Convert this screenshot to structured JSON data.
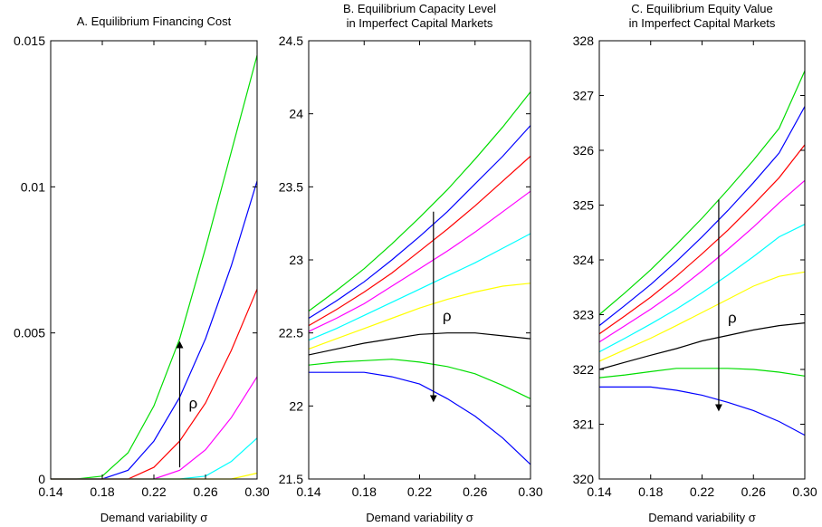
{
  "colors": {
    "series": [
      "#00dd00",
      "#0000ff",
      "#ff0000",
      "#ff00ff",
      "#00ffff",
      "#ffff00",
      "#000000"
    ],
    "frame": "#000000",
    "background": "#ffffff"
  },
  "chart_data": [
    {
      "type": "line",
      "title_lines": [
        "A. Equilibrium Financing Cost"
      ],
      "xlabel": "Demand variability σ",
      "ylabel": "",
      "xlim": [
        0.14,
        0.3
      ],
      "ylim": [
        0,
        0.015
      ],
      "xticks": [
        0.14,
        0.18,
        0.22,
        0.26,
        0.3
      ],
      "xtick_labels": [
        "0.14",
        "0.18",
        "0.22",
        "0.26",
        "0.30"
      ],
      "yticks": [
        0,
        0.005,
        0.01,
        0.015
      ],
      "ytick_labels": [
        "0",
        "0.005",
        "0.01",
        "0.015"
      ],
      "grid": false,
      "x": [
        0.14,
        0.16,
        0.18,
        0.2,
        0.22,
        0.24,
        0.26,
        0.28,
        0.3
      ],
      "series": [
        {
          "values": [
            0,
            0,
            0.0001,
            0.0009,
            0.0025,
            0.0048,
            0.0079,
            0.0112,
            0.0145
          ]
        },
        {
          "values": [
            0,
            0,
            0,
            0.0003,
            0.0013,
            0.0028,
            0.0048,
            0.0073,
            0.0102
          ]
        },
        {
          "values": [
            0,
            0,
            0,
            0,
            0.0004,
            0.0013,
            0.0026,
            0.0044,
            0.0065
          ]
        },
        {
          "values": [
            0,
            0,
            0,
            0,
            0,
            0.0003,
            0.001,
            0.0021,
            0.0035
          ]
        },
        {
          "values": [
            0,
            0,
            0,
            0,
            0,
            0,
            0.0001,
            0.0006,
            0.0014
          ]
        },
        {
          "values": [
            0,
            0,
            0,
            0,
            0,
            0,
            0,
            0,
            0.0002
          ]
        }
      ],
      "annotation": {
        "text": "ρ",
        "direction": "up",
        "arrow_x": 0.24,
        "arrow_from": 0.0004,
        "arrow_to": 0.0046,
        "label_y": 0.0026
      }
    },
    {
      "type": "line",
      "title_lines": [
        "B. Equilibrium Capacity Level",
        "in Imperfect Capital Markets"
      ],
      "xlabel": "Demand variability σ",
      "ylabel": "",
      "xlim": [
        0.14,
        0.3
      ],
      "ylim": [
        21.5,
        24.5
      ],
      "xticks": [
        0.14,
        0.18,
        0.22,
        0.26,
        0.3
      ],
      "xtick_labels": [
        "0.14",
        "0.18",
        "0.22",
        "0.26",
        "0.30"
      ],
      "yticks": [
        21.5,
        22,
        22.5,
        23,
        23.5,
        24,
        24.5
      ],
      "ytick_labels": [
        "21.5",
        "22",
        "22.5",
        "23",
        "23.5",
        "24",
        "24.5"
      ],
      "grid": false,
      "x": [
        0.14,
        0.16,
        0.18,
        0.2,
        0.22,
        0.24,
        0.26,
        0.28,
        0.3
      ],
      "series": [
        {
          "values": [
            22.65,
            22.79,
            22.94,
            23.11,
            23.29,
            23.48,
            23.69,
            23.91,
            24.15
          ]
        },
        {
          "values": [
            22.6,
            22.72,
            22.85,
            23.0,
            23.16,
            23.33,
            23.52,
            23.71,
            23.92
          ]
        },
        {
          "values": [
            22.55,
            22.66,
            22.78,
            22.91,
            23.06,
            23.21,
            23.37,
            23.54,
            23.71
          ]
        },
        {
          "values": [
            22.51,
            22.6,
            22.7,
            22.82,
            22.94,
            23.06,
            23.19,
            23.33,
            23.47
          ]
        },
        {
          "values": [
            22.45,
            22.53,
            22.62,
            22.71,
            22.8,
            22.89,
            22.98,
            23.08,
            23.18
          ]
        },
        {
          "values": [
            22.39,
            22.46,
            22.53,
            22.6,
            22.67,
            22.73,
            22.78,
            22.82,
            22.84
          ]
        },
        {
          "values": [
            22.35,
            22.39,
            22.43,
            22.46,
            22.49,
            22.5,
            22.5,
            22.48,
            22.46
          ]
        },
        {
          "values": [
            22.28,
            22.3,
            22.31,
            22.32,
            22.3,
            22.27,
            22.22,
            22.14,
            22.05
          ]
        },
        {
          "values": [
            22.23,
            22.23,
            22.23,
            22.2,
            22.15,
            22.05,
            21.93,
            21.78,
            21.6
          ]
        }
      ],
      "annotation": {
        "text": "ρ",
        "direction": "down",
        "arrow_x": 0.23,
        "arrow_from": 23.33,
        "arrow_to": 22.05,
        "label_y": 22.62
      }
    },
    {
      "type": "line",
      "title_lines": [
        "C. Equilibrium Equity Value",
        "in Imperfect Capital Markets"
      ],
      "xlabel": "Demand variability σ",
      "ylabel": "",
      "xlim": [
        0.14,
        0.3
      ],
      "ylim": [
        320,
        328
      ],
      "xticks": [
        0.14,
        0.18,
        0.22,
        0.26,
        0.3
      ],
      "xtick_labels": [
        "0.14",
        "0.18",
        "0.22",
        "0.26",
        "0.30"
      ],
      "yticks": [
        320,
        321,
        322,
        323,
        324,
        325,
        326,
        327,
        328
      ],
      "ytick_labels": [
        "320",
        "321",
        "322",
        "323",
        "324",
        "325",
        "326",
        "327",
        "328"
      ],
      "grid": false,
      "x": [
        0.14,
        0.16,
        0.18,
        0.2,
        0.22,
        0.24,
        0.26,
        0.28,
        0.3
      ],
      "series": [
        {
          "values": [
            323.0,
            323.4,
            323.82,
            324.28,
            324.76,
            325.28,
            325.82,
            326.4,
            327.45
          ]
        },
        {
          "values": [
            322.8,
            323.17,
            323.55,
            323.97,
            324.42,
            324.9,
            325.41,
            325.95,
            326.8
          ]
        },
        {
          "values": [
            322.65,
            322.98,
            323.32,
            323.7,
            324.11,
            324.54,
            325.01,
            325.5,
            326.1
          ]
        },
        {
          "values": [
            322.5,
            322.8,
            323.1,
            323.43,
            323.8,
            324.19,
            324.6,
            325.04,
            325.45
          ]
        },
        {
          "values": [
            322.32,
            322.57,
            322.83,
            323.1,
            323.4,
            323.72,
            324.06,
            324.42,
            324.65
          ]
        },
        {
          "values": [
            322.15,
            322.36,
            322.57,
            322.8,
            323.04,
            323.28,
            323.52,
            323.7,
            323.78
          ]
        },
        {
          "values": [
            322.0,
            322.13,
            322.26,
            322.38,
            322.52,
            322.62,
            322.72,
            322.8,
            322.85
          ]
        },
        {
          "values": [
            321.85,
            321.9,
            321.96,
            322.02,
            322.02,
            322.02,
            322.0,
            321.95,
            321.88
          ]
        },
        {
          "values": [
            321.68,
            321.68,
            321.68,
            321.62,
            321.53,
            321.4,
            321.25,
            321.05,
            320.8
          ]
        }
      ],
      "annotation": {
        "text": "ρ",
        "direction": "down",
        "arrow_x": 0.233,
        "arrow_from": 325.1,
        "arrow_to": 321.3,
        "label_y": 322.95
      }
    }
  ]
}
